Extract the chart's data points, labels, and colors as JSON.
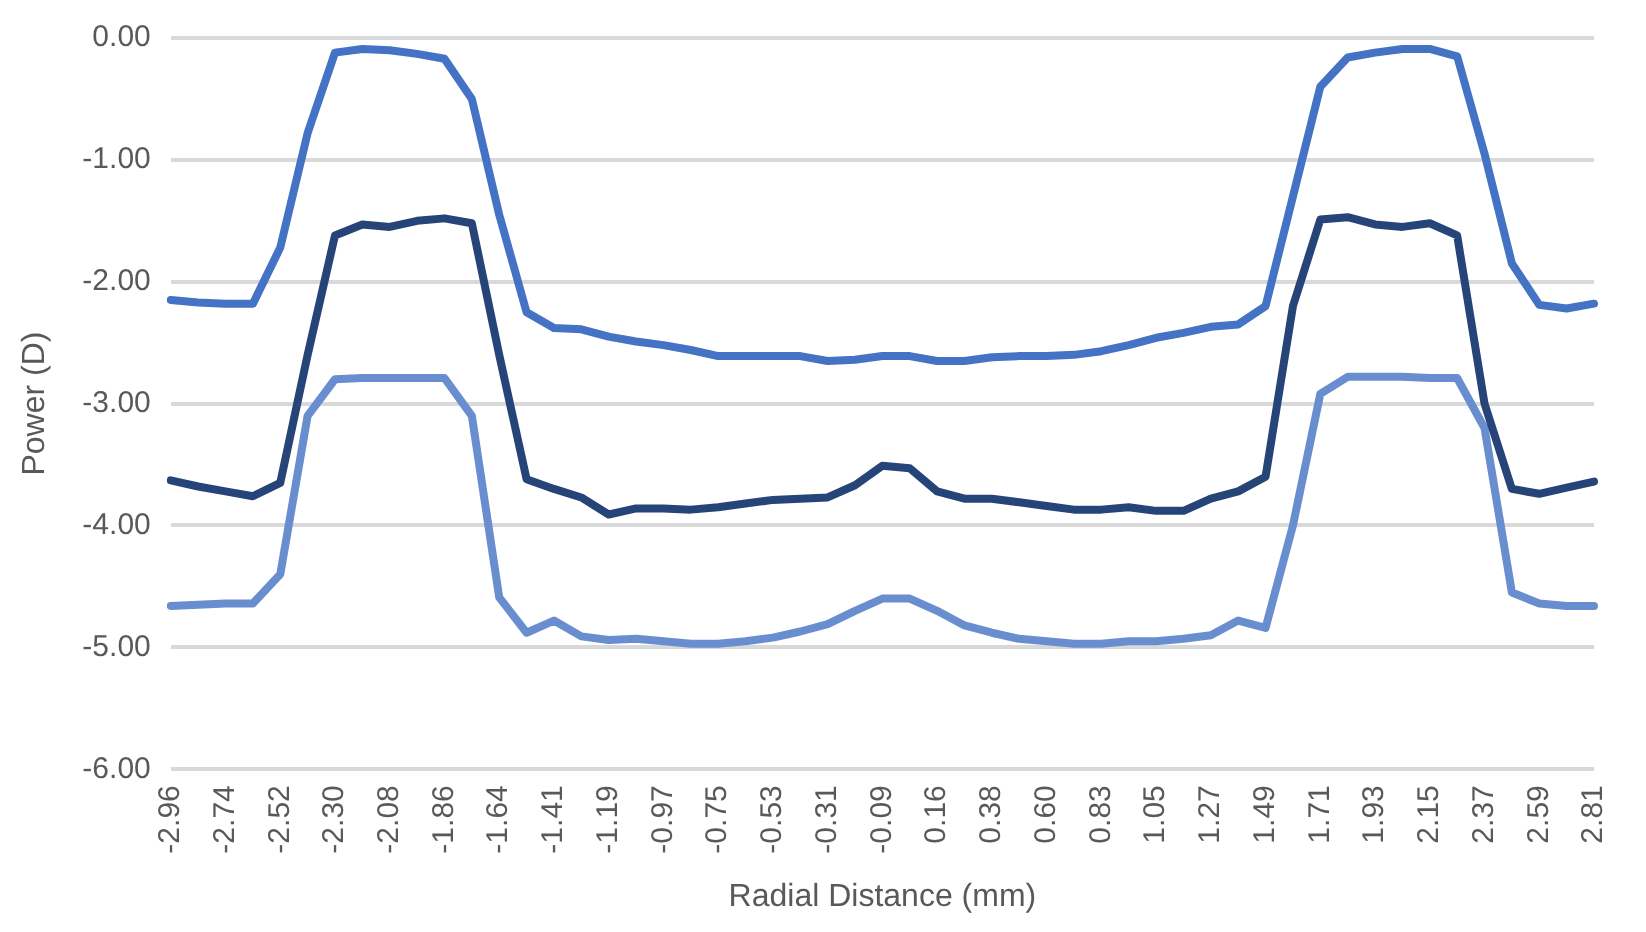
{
  "chart_data": {
    "type": "line",
    "xlabel": "Radial Distance (mm)",
    "ylabel": "Power (D)",
    "categories": [
      "-2.96",
      null,
      "-2.74",
      null,
      "-2.52",
      null,
      "-2.30",
      null,
      "-2.08",
      null,
      "-1.86",
      null,
      "-1.64",
      null,
      "-1.41",
      null,
      "-1.19",
      null,
      "-0.97",
      null,
      "-0.75",
      null,
      "-0.53",
      null,
      "-0.31",
      null,
      "-0.09",
      null,
      "0.16",
      null,
      "0.38",
      null,
      "0.60",
      null,
      "0.83",
      null,
      "1.05",
      null,
      "1.27",
      null,
      "1.49",
      null,
      "1.71",
      null,
      "1.93",
      null,
      "2.15",
      null,
      "2.37",
      null,
      "2.59",
      null,
      "2.81"
    ],
    "series": [
      {
        "color": "#4472c4",
        "values": [
          -2.15,
          -2.17,
          -2.18,
          -2.18,
          -1.72,
          -0.78,
          -0.12,
          -0.09,
          -0.1,
          -0.13,
          -0.17,
          -0.5,
          -1.45,
          -2.25,
          -2.38,
          -2.39,
          -2.45,
          -2.49,
          -2.52,
          -2.56,
          -2.61,
          -2.61,
          -2.61,
          -2.61,
          -2.65,
          -2.64,
          -2.61,
          -2.61,
          -2.65,
          -2.65,
          -2.62,
          -2.61,
          -2.61,
          -2.6,
          -2.57,
          -2.52,
          -2.46,
          -2.42,
          -2.37,
          -2.35,
          -2.2,
          -1.3,
          -0.4,
          -0.16,
          -0.12,
          -0.09,
          -0.09,
          -0.15,
          -0.95,
          -1.85,
          -2.19,
          -2.22,
          -2.18
        ]
      },
      {
        "color": "#264478",
        "values": [
          -3.63,
          -3.68,
          -3.72,
          -3.76,
          -3.65,
          -2.6,
          -1.62,
          -1.53,
          -1.55,
          -1.5,
          -1.48,
          -1.52,
          -2.6,
          -3.62,
          -3.7,
          -3.77,
          -3.91,
          -3.86,
          -3.86,
          -3.87,
          -3.85,
          -3.82,
          -3.79,
          -3.78,
          -3.77,
          -3.67,
          -3.51,
          -3.53,
          -3.72,
          -3.78,
          -3.78,
          -3.81,
          -3.84,
          -3.87,
          -3.87,
          -3.85,
          -3.88,
          -3.88,
          -3.78,
          -3.72,
          -3.6,
          -2.2,
          -1.49,
          -1.47,
          -1.53,
          -1.55,
          -1.52,
          -1.62,
          -3.0,
          -3.7,
          -3.74,
          -3.69,
          -3.64
        ]
      },
      {
        "color": "#698ed0",
        "values": [
          -4.66,
          -4.65,
          -4.64,
          -4.64,
          -4.4,
          -3.1,
          -2.8,
          -2.79,
          -2.79,
          -2.79,
          -2.79,
          -3.1,
          -4.59,
          -4.88,
          -4.78,
          -4.91,
          -4.94,
          -4.93,
          -4.95,
          -4.97,
          -4.97,
          -4.95,
          -4.92,
          -4.87,
          -4.81,
          -4.7,
          -4.6,
          -4.6,
          -4.7,
          -4.82,
          -4.88,
          -4.93,
          -4.95,
          -4.97,
          -4.97,
          -4.95,
          -4.95,
          -4.93,
          -4.9,
          -4.78,
          -4.84,
          -4.0,
          -2.92,
          -2.78,
          -2.78,
          -2.78,
          -2.79,
          -2.79,
          -3.2,
          -4.55,
          -4.64,
          -4.66,
          -4.66
        ]
      }
    ],
    "ylim": [
      -6,
      0
    ],
    "yticks": [
      {
        "value": -6,
        "label": "-6.00"
      },
      {
        "value": -5,
        "label": "-5.00"
      },
      {
        "value": -4,
        "label": "-4.00"
      },
      {
        "value": -3,
        "label": "-3.00"
      },
      {
        "value": -2,
        "label": "-2.00"
      },
      {
        "value": -1,
        "label": "-1.00"
      },
      {
        "value": 0,
        "label": "0.00"
      }
    ],
    "grid": "y",
    "legend": false,
    "marker": "none",
    "line_style": "solid"
  }
}
